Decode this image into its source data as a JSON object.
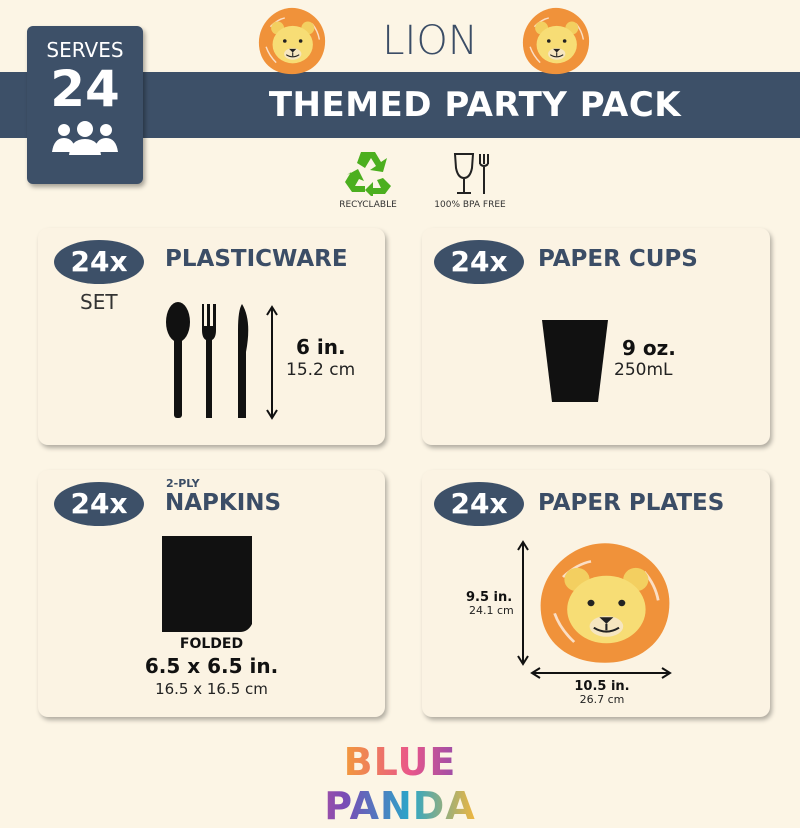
{
  "header": {
    "theme": "LION",
    "title": "THEMED PARTY PACK",
    "serves_label": "SERVES",
    "serves_count": "24",
    "people_icon": "people-icon"
  },
  "badges": [
    {
      "label": "RECYCLABLE",
      "icon": "recycle-icon",
      "color": "#4caf1f"
    },
    {
      "label": "100% BPA FREE",
      "icon": "food-safe-icon"
    }
  ],
  "cards": {
    "plasticware": {
      "qty": "24x",
      "title": "PLASTICWARE",
      "sub": "SET",
      "size": "6 in.",
      "metric": "15.2 cm"
    },
    "cups": {
      "qty": "24x",
      "title": "PAPER CUPS",
      "size": "9 oz.",
      "metric": "250mL"
    },
    "napkins": {
      "qty": "24x",
      "title": "NAPKINS",
      "ply": "2-PLY",
      "state": "FOLDED",
      "size": "6.5 x 6.5 in.",
      "metric": "16.5 x 16.5 cm"
    },
    "plates": {
      "qty": "24x",
      "title": "PAPER PLATES",
      "height": "9.5 in.",
      "height_metric": "24.1 cm",
      "width": "10.5 in.",
      "width_metric": "26.7 cm"
    }
  },
  "brand": {
    "name": "BLUE PANDA"
  },
  "colors": {
    "navy": "#3d5068",
    "background": "#fcf5e5",
    "mane": "#f0923a",
    "face": "#f7dd75"
  }
}
